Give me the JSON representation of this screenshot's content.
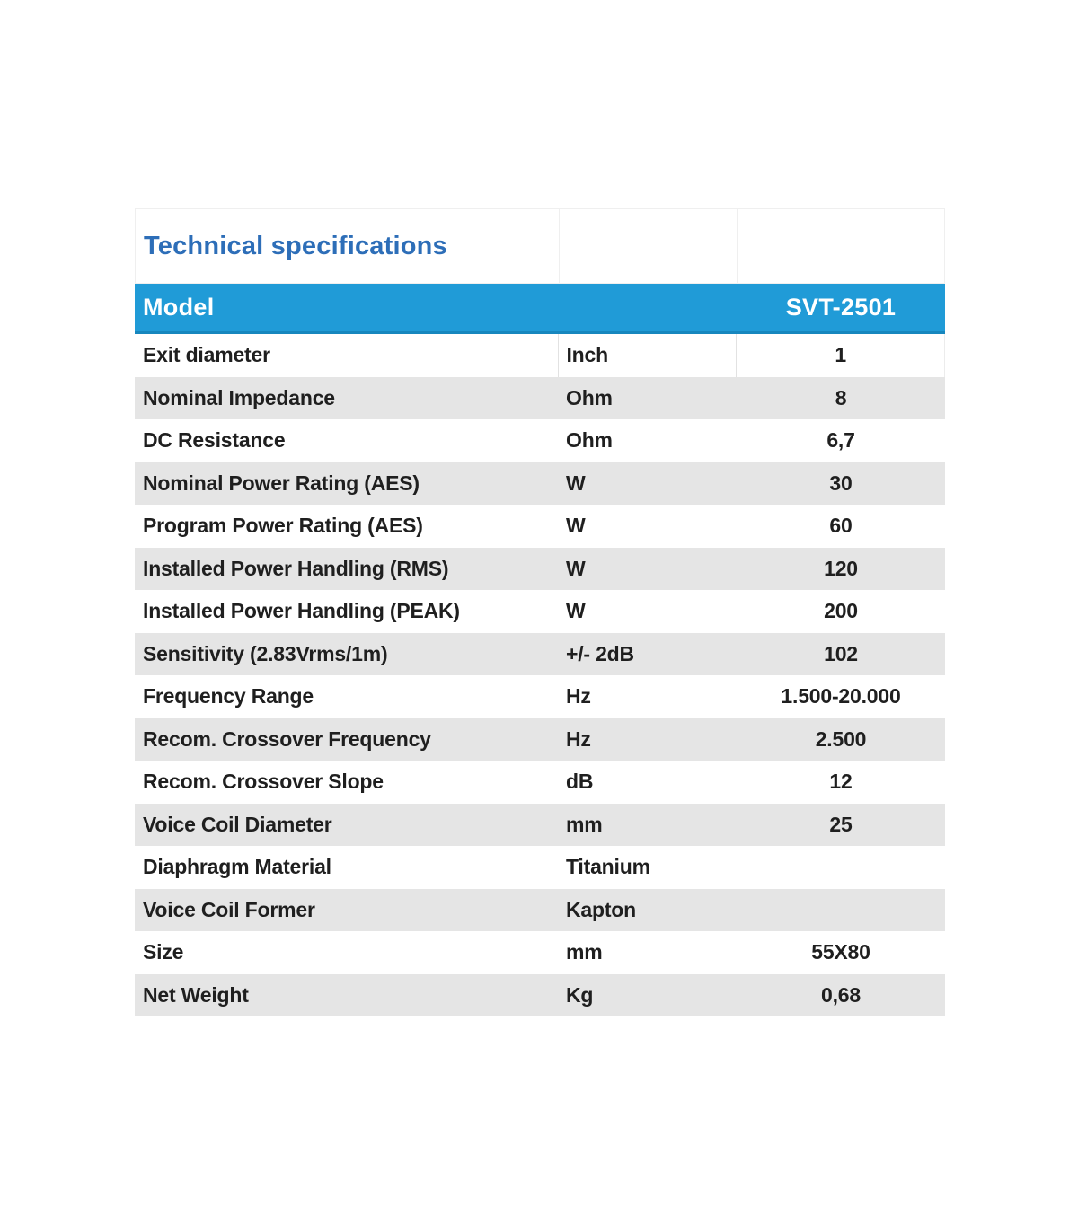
{
  "table": {
    "title": "Technical specifications",
    "header_row": {
      "label": "Model",
      "value": "SVT-2501"
    },
    "colors": {
      "accent_blue": "#209bd7",
      "accent_blue_dark": "#1787be",
      "title_blue": "#2d6eb8",
      "row_gray": "#e5e5e5",
      "text_dark": "#1f1f1f"
    },
    "columns": [
      "parameter",
      "unit",
      "value"
    ],
    "rows": [
      {
        "label": "Exit diameter",
        "unit": "Inch",
        "value": "1"
      },
      {
        "label": "Nominal Impedance",
        "unit": "Ohm",
        "value": "8"
      },
      {
        "label": "DC Resistance",
        "unit": "Ohm",
        "value": "6,7"
      },
      {
        "label": "Nominal Power Rating (AES)",
        "unit": "W",
        "value": "30"
      },
      {
        "label": "Program Power Rating (AES)",
        "unit": "W",
        "value": "60"
      },
      {
        "label": "Installed Power Handling (RMS)",
        "unit": "W",
        "value": "120"
      },
      {
        "label": "Installed Power Handling (PEAK)",
        "unit": "W",
        "value": "200"
      },
      {
        "label": "Sensitivity (2.83Vrms/1m)",
        "unit": "+/- 2dB",
        "value": "102"
      },
      {
        "label": "Frequency Range",
        "unit": "Hz",
        "value": "1.500-20.000"
      },
      {
        "label": "Recom. Crossover Frequency",
        "unit": "Hz",
        "value": "2.500"
      },
      {
        "label": "Recom. Crossover Slope",
        "unit": "dB",
        "value": "12"
      },
      {
        "label": "Voice Coil Diameter",
        "unit": "mm",
        "value": "25"
      },
      {
        "label": "Diaphragm Material",
        "unit": "Titanium",
        "value": ""
      },
      {
        "label": "Voice Coil Former",
        "unit": "Kapton",
        "value": ""
      },
      {
        "label": "Size",
        "unit": "mm",
        "value": "55X80"
      },
      {
        "label": "Net Weight",
        "unit": "Kg",
        "value": "0,68"
      }
    ]
  }
}
